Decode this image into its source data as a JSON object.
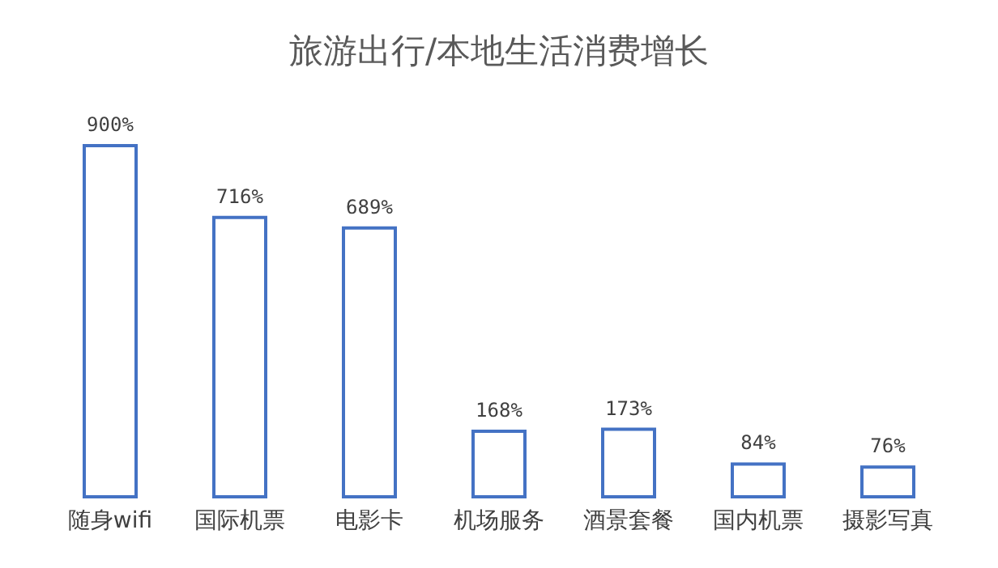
{
  "chart_data": {
    "type": "bar",
    "title": "旅游出行/本地生活消费增长",
    "categories": [
      "随身wifi",
      "国际机票",
      "电影卡",
      "机场服务",
      "酒景套餐",
      "国内机票",
      "摄影写真"
    ],
    "values": [
      900,
      716,
      689,
      168,
      173,
      84,
      76
    ],
    "value_labels": [
      "900%",
      "716%",
      "689%",
      "168%",
      "173%",
      "84%",
      "76%"
    ],
    "color": "#4472c4"
  }
}
